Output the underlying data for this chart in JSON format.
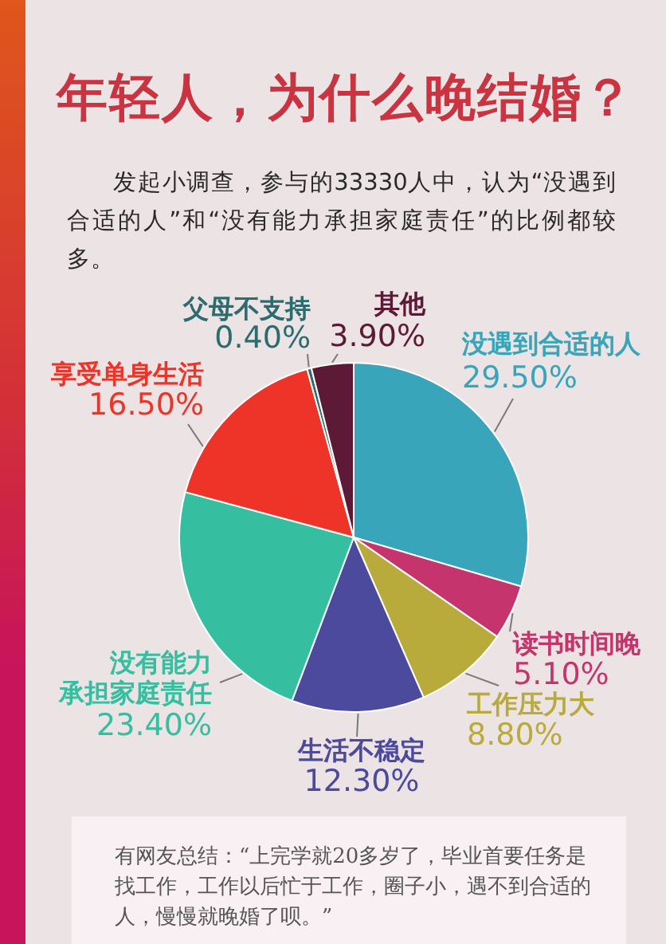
{
  "chart_data": {
    "type": "pie",
    "title": "年轻人，为什么晚结婚？",
    "subtitle": "发起小调查，参与的33330人中，认为“没遇到合适的人”和“没有能力承担家庭责任”的比例都较多。",
    "categories": [
      "没遇到合适的人",
      "读书时间晚",
      "工作压力大",
      "生活不稳定",
      "没有能力承担家庭责任",
      "享受单身生活",
      "父母不支持",
      "其他"
    ],
    "values": [
      29.5,
      5.1,
      8.8,
      12.3,
      23.4,
      16.5,
      0.4,
      3.9
    ],
    "colors": [
      "#39a5ba",
      "#c5346c",
      "#b9aa3c",
      "#4c4a9c",
      "#36bea0",
      "#ee3328",
      "#2c6c6e",
      "#5c1a36"
    ],
    "value_labels": [
      "29.50%",
      "5.10%",
      "8.80%",
      "12.30%",
      "23.40%",
      "16.50%",
      "0.40%",
      "3.90%"
    ],
    "annotations": [
      "有网友总结：“上完学就20多岁了，毕业首要任务是找工作，工作以后忙于工作，圈子小，遇不到合适的人，慢慢就晚婚了呗。”"
    ]
  }
}
